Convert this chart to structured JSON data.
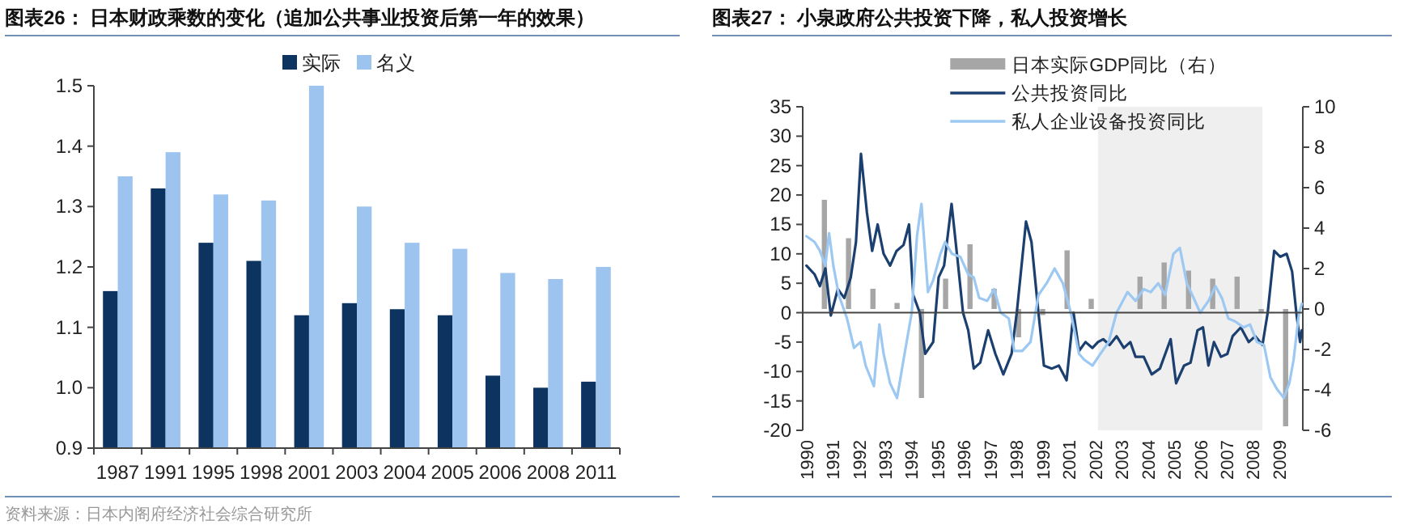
{
  "chart_data": [
    {
      "type": "bar",
      "title": "图表26：  日本财政乘数的变化（追加公共事业投资后第一年的效果）",
      "categories": [
        "1987",
        "1991",
        "1995",
        "1998",
        "2001",
        "2003",
        "2004",
        "2005",
        "2006",
        "2008",
        "2011"
      ],
      "series": [
        {
          "name": "实际",
          "color": "#0d3461",
          "values": [
            1.16,
            1.33,
            1.24,
            1.21,
            1.12,
            1.14,
            1.13,
            1.12,
            1.02,
            1.0,
            1.01
          ]
        },
        {
          "name": "名义",
          "color": "#9dc3ef",
          "values": [
            1.35,
            1.39,
            1.32,
            1.31,
            1.5,
            1.3,
            1.24,
            1.23,
            1.19,
            1.18,
            1.2
          ]
        }
      ],
      "ylim": [
        0.9,
        1.5
      ],
      "yticks": [
        {
          "value": 0.9,
          "label": "0.9"
        },
        {
          "value": 1.0,
          "label": "1.0"
        },
        {
          "value": 1.1,
          "label": "1.1"
        },
        {
          "value": 1.2,
          "label": "1.2"
        },
        {
          "value": 1.3,
          "label": "1.3"
        },
        {
          "value": 1.4,
          "label": "1.4"
        },
        {
          "value": 1.5,
          "label": "1.5"
        }
      ],
      "legend": "top",
      "annotations": [
        "资料来源：日本内阁府经济社会综合研究所"
      ]
    },
    {
      "type": "line",
      "title": "图表27：  小泉政府公共投资下降，私人投资增长",
      "xlim": [
        1989.82,
        2009.91
      ],
      "xticks": [
        {
          "value": 1989.97,
          "label": "1990"
        },
        {
          "value": 1991.03,
          "label": "1991"
        },
        {
          "value": 1992.08,
          "label": "1992"
        },
        {
          "value": 1993.14,
          "label": "1993"
        },
        {
          "value": 1994.19,
          "label": "1994"
        },
        {
          "value": 1995.25,
          "label": "1995"
        },
        {
          "value": 1996.3,
          "label": "1996"
        },
        {
          "value": 1997.36,
          "label": "1997"
        },
        {
          "value": 1998.41,
          "label": "1998"
        },
        {
          "value": 1999.47,
          "label": "1999"
        },
        {
          "value": 2000.53,
          "label": "2001"
        },
        {
          "value": 2001.58,
          "label": "2002"
        },
        {
          "value": 2002.64,
          "label": "2003"
        },
        {
          "value": 2003.69,
          "label": "2004"
        },
        {
          "value": 2004.75,
          "label": "2005"
        },
        {
          "value": 2005.8,
          "label": "2006"
        },
        {
          "value": 2006.86,
          "label": "2007"
        },
        {
          "value": 2007.91,
          "label": "2008"
        },
        {
          "value": 2008.97,
          "label": "2009"
        }
      ],
      "ylim": [
        -20,
        35
      ],
      "yticks": [
        -20,
        -15,
        -10,
        -5,
        0,
        5,
        10,
        15,
        20,
        25,
        30,
        35
      ],
      "y2lim": [
        -6,
        10
      ],
      "y2ticks": [
        -6,
        -4,
        -2,
        0,
        2,
        4,
        6,
        8,
        10
      ],
      "bands": [
        {
          "axis": "x",
          "from": 2001.68,
          "to": 2008.29,
          "color": "#efefef"
        }
      ],
      "legend": "top",
      "series": [
        {
          "name": "日本实际GDP同比（右）",
          "type": "bar",
          "axis": "y2",
          "color": "#a6a6a6",
          "x": [
            1990.69,
            1991.66,
            1992.64,
            1993.61,
            1994.59,
            1995.56,
            1996.54,
            1997.51,
            1998.49,
            1999.46,
            2000.44,
            2001.41,
            2003.37,
            2004.34,
            2005.32,
            2006.29,
            2007.27,
            2008.24,
            2009.22
          ],
          "values": [
            5.4,
            3.5,
            1.0,
            0.3,
            -4.4,
            1.5,
            3.2,
            1.0,
            -1.4,
            -0.3,
            2.9,
            0.5,
            1.6,
            2.3,
            1.9,
            1.5,
            1.6,
            -0.2,
            -5.8
          ]
        },
        {
          "name": "公共投资同比",
          "color": "#1b3f6e",
          "x": [
            1989.97,
            1990.3,
            1990.51,
            1990.73,
            1990.95,
            1991.23,
            1991.49,
            1991.75,
            1991.96,
            1992.16,
            1992.4,
            1992.61,
            1992.83,
            1993.07,
            1993.33,
            1993.59,
            1993.87,
            1994.09,
            1994.26,
            1994.52,
            1994.74,
            1995.06,
            1995.28,
            1995.5,
            1995.8,
            1996.04,
            1996.26,
            1996.47,
            1996.69,
            1996.95,
            1997.27,
            1997.56,
            1997.88,
            1998.21,
            1998.42,
            1998.79,
            1999.01,
            1999.29,
            1999.51,
            1999.83,
            2000.11,
            2000.42,
            2000.7,
            2000.92,
            2001.18,
            2001.46,
            2001.68,
            2001.89,
            2002.15,
            2002.43,
            2002.72,
            2002.98,
            2003.19,
            2003.52,
            2003.84,
            2004.17,
            2004.6,
            2004.82,
            2005.14,
            2005.4,
            2005.68,
            2005.9,
            2006.12,
            2006.34,
            2006.62,
            2006.88,
            2007.09,
            2007.42,
            2007.74,
            2008.0,
            2008.29,
            2008.5,
            2008.76,
            2009.0,
            2009.26,
            2009.48,
            2009.65,
            2009.8,
            2009.87
          ],
          "values": [
            8,
            6.5,
            4.5,
            7.5,
            -0.5,
            4,
            2.5,
            6,
            12,
            27,
            17,
            10.5,
            15,
            10,
            8,
            10.5,
            11.5,
            15,
            3,
            0,
            -7,
            -5,
            6,
            8,
            18.5,
            9,
            0,
            -3,
            -9.5,
            -8.5,
            -3,
            -7,
            -10.5,
            -7,
            0,
            15.5,
            12,
            0,
            -9,
            -9.5,
            -9,
            -11.5,
            0,
            -6.5,
            -5,
            -6,
            -5,
            -4.5,
            -5.5,
            -4,
            -6,
            -5,
            -7.5,
            -7.5,
            -10.5,
            -9.5,
            -4.5,
            -12,
            -9,
            -8.5,
            -3,
            -2.5,
            -9,
            -5,
            -7.5,
            -7,
            -4,
            -2.5,
            -5,
            -4,
            -5.5,
            0,
            10.5,
            9.5,
            10,
            7,
            0,
            -5,
            -3
          ]
        },
        {
          "name": "私人企业设备投资同比",
          "color": "#9cc8f2",
          "x": [
            1989.97,
            1990.3,
            1990.51,
            1990.73,
            1990.88,
            1991.05,
            1991.27,
            1991.6,
            1991.88,
            1992.14,
            1992.35,
            1992.68,
            1992.9,
            1993.07,
            1993.33,
            1993.61,
            1993.87,
            1994.2,
            1994.41,
            1994.59,
            1994.74,
            1994.85,
            1995.06,
            1995.35,
            1995.54,
            1995.82,
            1996.15,
            1996.47,
            1996.69,
            1996.91,
            1997.23,
            1997.51,
            1997.77,
            1998.1,
            1998.32,
            1998.64,
            1998.97,
            1999.29,
            1999.62,
            1999.94,
            2000.27,
            2000.59,
            2000.92,
            2001.13,
            2001.46,
            2001.78,
            2002.11,
            2002.43,
            2002.87,
            2003.19,
            2003.52,
            2003.8,
            2004.1,
            2004.38,
            2004.71,
            2004.97,
            2005.25,
            2005.47,
            2005.79,
            2006.12,
            2006.4,
            2006.66,
            2006.92,
            2007.2,
            2007.53,
            2007.79,
            2008.07,
            2008.35,
            2008.61,
            2008.87,
            2009.15,
            2009.37,
            2009.54,
            2009.76,
            2009.87
          ],
          "values": [
            13,
            12,
            10.5,
            8,
            13.5,
            8,
            3,
            -1,
            -6,
            -5,
            -9,
            -12.5,
            -2,
            -7,
            -12,
            -14.5,
            -8,
            0,
            13,
            18.5,
            10,
            3.5,
            5.5,
            10,
            12,
            10,
            9.5,
            6.5,
            6,
            2.5,
            2,
            4,
            0,
            -1,
            -6.5,
            -6.5,
            -5,
            3,
            5,
            7.5,
            5,
            0,
            -7,
            -8,
            -9,
            -7,
            -5,
            0,
            3.5,
            2,
            4,
            3.5,
            5,
            3,
            10,
            11,
            5,
            3,
            0,
            2,
            4.5,
            2.5,
            -1,
            -1.5,
            -2.5,
            -2,
            -5,
            -5.5,
            -11,
            -13,
            -14.5,
            -12,
            -8,
            0,
            1.5
          ]
        }
      ]
    }
  ]
}
